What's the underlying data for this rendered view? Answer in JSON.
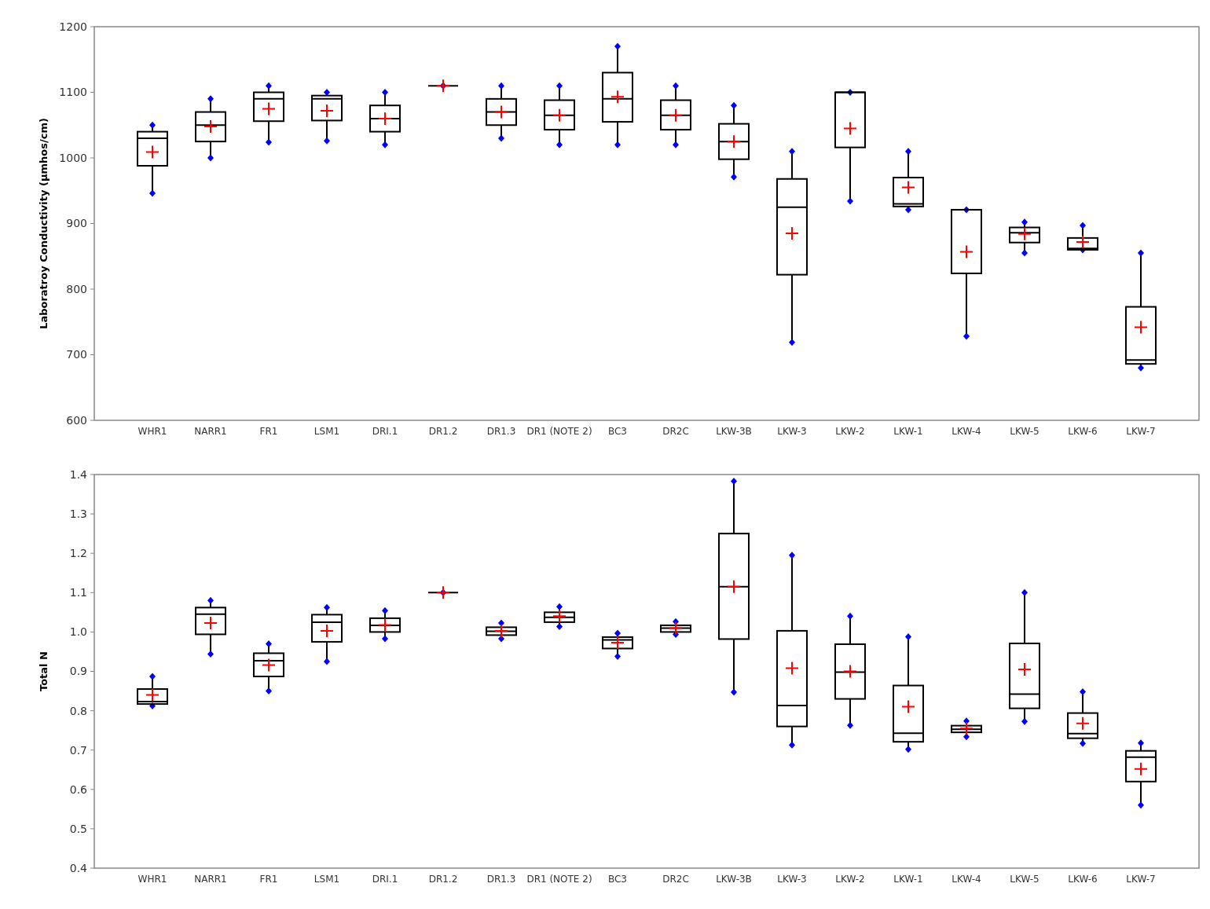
{
  "chart_data": [
    {
      "type": "box",
      "ylabel": "Laboratroy Conductivity (µmhos/cm)",
      "categories": [
        "WHR1",
        "NARR1",
        "FR1",
        "LSM1",
        "DRI.1",
        "DR1.2",
        "DR1.3",
        "DR1 (NOTE 2)",
        "BC3",
        "DR2C",
        "LKW-3B",
        "LKW-3",
        "LKW-2",
        "LKW-1",
        "LKW-4",
        "LKW-5",
        "LKW-6",
        "LKW-7"
      ],
      "ylim": [
        600,
        1200
      ],
      "yticks": [
        600,
        700,
        800,
        900,
        1000,
        1100,
        1200
      ],
      "grid": false,
      "boxes": [
        {
          "low": 946,
          "q1": 988,
          "median": 1030,
          "q3": 1040,
          "high": 1050,
          "mean": 1009
        },
        {
          "low": 1000,
          "q1": 1025,
          "median": 1050,
          "q3": 1070,
          "high": 1090,
          "mean": 1048
        },
        {
          "low": 1024,
          "q1": 1056,
          "median": 1090,
          "q3": 1100,
          "high": 1110,
          "mean": 1075
        },
        {
          "low": 1026,
          "q1": 1057,
          "median": 1090,
          "q3": 1095,
          "high": 1100,
          "mean": 1072
        },
        {
          "low": 1020,
          "q1": 1040,
          "median": 1060,
          "q3": 1080,
          "high": 1100,
          "mean": 1060
        },
        {
          "low": 1110,
          "q1": 1110,
          "median": 1110,
          "q3": 1110,
          "high": 1110,
          "mean": 1110
        },
        {
          "low": 1030,
          "q1": 1050,
          "median": 1070,
          "q3": 1090,
          "high": 1110,
          "mean": 1070
        },
        {
          "low": 1020,
          "q1": 1043,
          "median": 1065,
          "q3": 1088,
          "high": 1110,
          "mean": 1065
        },
        {
          "low": 1020,
          "q1": 1055,
          "median": 1090,
          "q3": 1130,
          "high": 1170,
          "mean": 1093
        },
        {
          "low": 1020,
          "q1": 1043,
          "median": 1065,
          "q3": 1088,
          "high": 1110,
          "mean": 1065
        },
        {
          "low": 971,
          "q1": 998,
          "median": 1025,
          "q3": 1052,
          "high": 1080,
          "mean": 1025
        },
        {
          "low": 719,
          "q1": 822,
          "median": 925,
          "q3": 968,
          "high": 1010,
          "mean": 885
        },
        {
          "low": 934,
          "q1": 1016,
          "median": 1100,
          "q3": 1100,
          "high": 1100,
          "mean": 1045
        },
        {
          "low": 921,
          "q1": 926,
          "median": 930,
          "q3": 970,
          "high": 1010,
          "mean": 955
        },
        {
          "low": 728,
          "q1": 824,
          "median": 921,
          "q3": 921,
          "high": 921,
          "mean": 857
        },
        {
          "low": 855,
          "q1": 871,
          "median": 886,
          "q3": 894,
          "high": 902,
          "mean": 884
        },
        {
          "low": 860,
          "q1": 860,
          "median": 862,
          "q3": 878,
          "high": 897,
          "mean": 872
        },
        {
          "low": 680,
          "q1": 686,
          "median": 692,
          "q3": 773,
          "high": 855,
          "mean": 742
        }
      ]
    },
    {
      "type": "box",
      "ylabel": "Total N",
      "categories": [
        "WHR1",
        "NARR1",
        "FR1",
        "LSM1",
        "DRI.1",
        "DR1.2",
        "DR1.3",
        "DR1 (NOTE 2)",
        "BC3",
        "DR2C",
        "LKW-3B",
        "LKW-3",
        "LKW-2",
        "LKW-1",
        "LKW-4",
        "LKW-5",
        "LKW-6",
        "LKW-7"
      ],
      "ylim": [
        0.4,
        1.4
      ],
      "yticks": [
        {
          "value": 0.4,
          "label": "0.4"
        },
        {
          "value": 0.5,
          "label": "0.5"
        },
        {
          "value": 0.6,
          "label": "0.6"
        },
        {
          "value": 0.7,
          "label": "0.7"
        },
        {
          "value": 0.8,
          "label": "0.8"
        },
        {
          "value": 0.9,
          "label": "0.9"
        },
        {
          "value": 1.0,
          "label": "1.0"
        },
        {
          "value": 1.1,
          "label": "1.1"
        },
        {
          "value": 1.2,
          "label": "1.2"
        },
        {
          "value": 1.3,
          "label": "1.3"
        },
        {
          "value": 1.4,
          "label": "1.4"
        }
      ],
      "grid": false,
      "boxes": [
        {
          "low": 0.812,
          "q1": 0.817,
          "median": 0.823,
          "q3": 0.855,
          "high": 0.887,
          "mean": 0.84
        },
        {
          "low": 0.944,
          "q1": 0.994,
          "median": 1.045,
          "q3": 1.062,
          "high": 1.08,
          "mean": 1.023
        },
        {
          "low": 0.85,
          "q1": 0.887,
          "median": 0.927,
          "q3": 0.946,
          "high": 0.97,
          "mean": 0.916
        },
        {
          "low": 0.925,
          "q1": 0.975,
          "median": 1.025,
          "q3": 1.044,
          "high": 1.062,
          "mean": 1.003
        },
        {
          "low": 0.983,
          "q1": 1.0,
          "median": 1.017,
          "q3": 1.035,
          "high": 1.054,
          "mean": 1.018
        },
        {
          "low": 1.1,
          "q1": 1.1,
          "median": 1.1,
          "q3": 1.1,
          "high": 1.1,
          "mean": 1.1
        },
        {
          "low": 0.983,
          "q1": 0.992,
          "median": 1.002,
          "q3": 1.012,
          "high": 1.023,
          "mean": 1.003
        },
        {
          "low": 1.014,
          "q1": 1.025,
          "median": 1.037,
          "q3": 1.05,
          "high": 1.064,
          "mean": 1.04
        },
        {
          "low": 0.938,
          "q1": 0.958,
          "median": 0.98,
          "q3": 0.987,
          "high": 0.997,
          "mean": 0.973
        },
        {
          "low": 0.994,
          "q1": 1.0,
          "median": 1.01,
          "q3": 1.017,
          "high": 1.026,
          "mean": 1.01
        },
        {
          "low": 0.847,
          "q1": 0.982,
          "median": 1.115,
          "q3": 1.25,
          "high": 1.383,
          "mean": 1.115
        },
        {
          "low": 0.713,
          "q1": 0.76,
          "median": 0.813,
          "q3": 1.003,
          "high": 1.195,
          "mean": 0.908
        },
        {
          "low": 0.763,
          "q1": 0.83,
          "median": 0.898,
          "q3": 0.969,
          "high": 1.04,
          "mean": 0.9
        },
        {
          "low": 0.702,
          "q1": 0.721,
          "median": 0.743,
          "q3": 0.864,
          "high": 0.988,
          "mean": 0.81
        },
        {
          "low": 0.734,
          "q1": 0.745,
          "median": 0.753,
          "q3": 0.762,
          "high": 0.774,
          "mean": 0.755
        },
        {
          "low": 0.773,
          "q1": 0.806,
          "median": 0.842,
          "q3": 0.971,
          "high": 1.1,
          "mean": 0.905
        },
        {
          "low": 0.717,
          "q1": 0.73,
          "median": 0.742,
          "q3": 0.794,
          "high": 0.848,
          "mean": 0.768
        },
        {
          "low": 0.56,
          "q1": 0.62,
          "median": 0.682,
          "q3": 0.698,
          "high": 0.718,
          "mean": 0.652
        }
      ]
    }
  ]
}
